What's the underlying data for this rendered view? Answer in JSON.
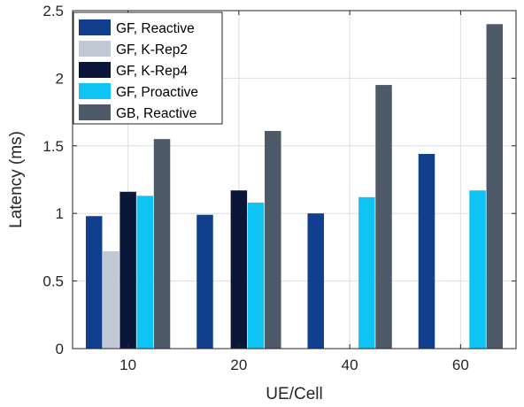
{
  "chart_data": {
    "type": "bar",
    "title": "",
    "xlabel": "UE/Cell",
    "ylabel": "Latency (ms)",
    "categories": [
      "10",
      "20",
      "40",
      "60"
    ],
    "ylim": [
      0,
      2.5
    ],
    "yticks": [
      "0",
      "0.5",
      "1",
      "1.5",
      "2",
      "2.5"
    ],
    "grid": true,
    "legend_position": "top-left",
    "series": [
      {
        "name": "GF, Reactive",
        "color": "#123e8e",
        "values": [
          0.98,
          0.99,
          1.0,
          1.44
        ]
      },
      {
        "name": "GF, K-Rep2",
        "color": "#c0c9d3",
        "values": [
          0.72,
          null,
          null,
          null
        ]
      },
      {
        "name": "GF, K-Rep4",
        "color": "#0b1738",
        "values": [
          1.16,
          1.17,
          null,
          null
        ]
      },
      {
        "name": "GF, Proactive",
        "color": "#0ec4f4",
        "values": [
          1.13,
          1.08,
          1.12,
          1.17
        ]
      },
      {
        "name": "GB, Reactive",
        "color": "#4f5a68",
        "values": [
          1.55,
          1.61,
          1.95,
          2.4
        ]
      }
    ]
  }
}
